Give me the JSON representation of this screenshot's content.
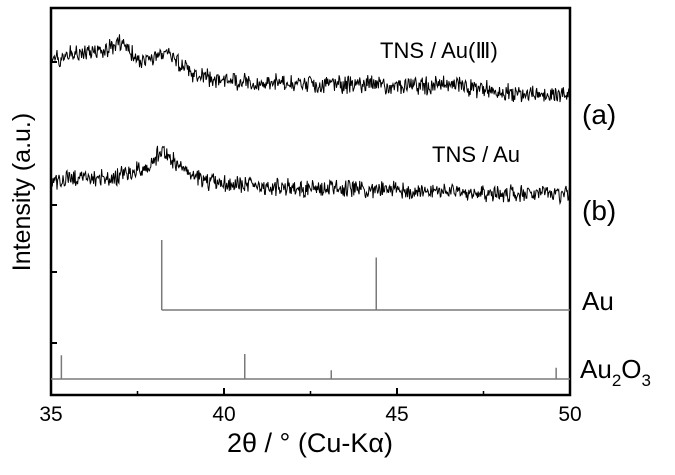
{
  "chart_data": {
    "type": "line",
    "title": "",
    "xlabel": "2θ / ° (Cu-Kα)",
    "ylabel": "Intensity (a.u.)",
    "xlim": [
      35,
      50
    ],
    "x_ticks": [
      35,
      40,
      45,
      50
    ],
    "x_tick_labels": [
      "35",
      "40",
      "45",
      "50"
    ],
    "y_ticks_labeled": false,
    "grid": false,
    "legend": "none",
    "series": [
      {
        "name": "TNS / Au(Ⅲ)",
        "tag": "(a)",
        "color": "#000000",
        "points": [
          [
            35.2,
            0.55
          ],
          [
            35.8,
            0.7
          ],
          [
            36.5,
            0.75
          ],
          [
            37.0,
            0.92
          ],
          [
            37.6,
            0.45
          ],
          [
            38.3,
            0.72
          ],
          [
            39.0,
            0.2
          ],
          [
            40.0,
            0.05
          ],
          [
            41.0,
            0.0
          ],
          [
            42.0,
            -0.02
          ],
          [
            43.0,
            -0.05
          ],
          [
            44.0,
            -0.06
          ],
          [
            45.0,
            -0.08
          ],
          [
            45.8,
            -0.1
          ],
          [
            46.5,
            -0.04
          ],
          [
            47.5,
            -0.18
          ],
          [
            48.5,
            -0.28
          ],
          [
            49.5,
            -0.32
          ],
          [
            50.0,
            -0.3
          ]
        ]
      },
      {
        "name": "TNS / Au",
        "tag": "(b)",
        "color": "#000000",
        "points": [
          [
            35.2,
            0.2
          ],
          [
            35.8,
            0.3
          ],
          [
            36.5,
            0.28
          ],
          [
            37.2,
            0.35
          ],
          [
            37.8,
            0.55
          ],
          [
            38.2,
            0.95
          ],
          [
            38.5,
            0.72
          ],
          [
            39.0,
            0.35
          ],
          [
            39.5,
            0.18
          ],
          [
            40.5,
            0.12
          ],
          [
            41.5,
            0.08
          ],
          [
            42.5,
            0.05
          ],
          [
            43.5,
            0.02
          ],
          [
            44.5,
            0.0
          ],
          [
            45.5,
            -0.02
          ],
          [
            46.5,
            -0.05
          ],
          [
            47.5,
            -0.07
          ],
          [
            48.5,
            -0.1
          ],
          [
            49.5,
            -0.12
          ],
          [
            50.0,
            -0.1
          ]
        ]
      },
      {
        "name": "Au",
        "type": "stick",
        "color": "#7a7a7a",
        "sticks": [
          [
            38.2,
            1.0
          ],
          [
            44.4,
            0.75
          ]
        ]
      },
      {
        "name": "Au2O3",
        "label_main": "Au",
        "label_sub1": "2",
        "label_mid": "O",
        "label_sub2": "3",
        "type": "stick",
        "color": "#7a7a7a",
        "sticks": [
          [
            35.3,
            0.95
          ],
          [
            40.6,
            1.0
          ],
          [
            43.1,
            0.35
          ],
          [
            49.6,
            0.45
          ]
        ]
      }
    ]
  }
}
